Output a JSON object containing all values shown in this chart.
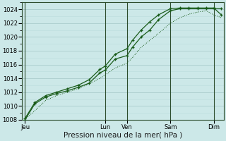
{
  "background_color": "#cce8e8",
  "plot_bg_color": "#cce8e8",
  "grid_major_color": "#aacccc",
  "grid_minor_color": "#bbdddd",
  "line_color": "#1a5c1a",
  "xlabel": "Pression niveau de la mer( hPa )",
  "ylim": [
    1008,
    1025
  ],
  "xlim": [
    0,
    9.3
  ],
  "yticks": [
    1008,
    1010,
    1012,
    1014,
    1016,
    1018,
    1020,
    1022,
    1024
  ],
  "day_labels": [
    "Jeu",
    "Lun",
    "Ven",
    "Sam",
    "Dim"
  ],
  "day_positions": [
    0.15,
    3.85,
    4.85,
    6.85,
    8.85
  ],
  "vline_positions": [
    0.15,
    3.85,
    4.85,
    6.85,
    8.85
  ],
  "line1_x": [
    0.15,
    0.6,
    1.1,
    1.6,
    2.1,
    2.6,
    3.1,
    3.6,
    3.85,
    4.3,
    4.85,
    5.1,
    5.5,
    5.9,
    6.3,
    6.85,
    7.3,
    7.7,
    8.1,
    8.5,
    8.85,
    9.2
  ],
  "line1_y": [
    1008.0,
    1010.3,
    1011.3,
    1011.8,
    1012.2,
    1012.7,
    1013.3,
    1014.8,
    1015.2,
    1016.8,
    1017.3,
    1018.5,
    1020.0,
    1021.0,
    1022.5,
    1023.8,
    1024.1,
    1024.1,
    1024.1,
    1024.1,
    1024.1,
    1024.1
  ],
  "line2_x": [
    0.15,
    0.6,
    1.1,
    1.6,
    2.1,
    2.6,
    3.1,
    3.6,
    3.85,
    4.3,
    4.85,
    5.1,
    5.5,
    5.9,
    6.3,
    6.85,
    7.3,
    7.7,
    8.1,
    8.5,
    8.85,
    9.2
  ],
  "line2_y": [
    1008.2,
    1010.5,
    1011.5,
    1012.0,
    1012.5,
    1013.0,
    1013.8,
    1015.3,
    1015.8,
    1017.5,
    1018.3,
    1019.5,
    1021.0,
    1022.2,
    1023.2,
    1024.1,
    1024.2,
    1024.2,
    1024.2,
    1024.2,
    1024.2,
    1023.2
  ],
  "line3_x": [
    0.15,
    0.6,
    1.1,
    1.6,
    2.1,
    2.6,
    3.1,
    3.6,
    3.85,
    4.3,
    4.85,
    5.1,
    5.5,
    5.9,
    6.3,
    6.85,
    7.3,
    7.7,
    8.1,
    8.5,
    8.85,
    9.2
  ],
  "line3_y": [
    1008.1,
    1009.3,
    1010.8,
    1011.5,
    1012.0,
    1012.5,
    1013.2,
    1014.0,
    1014.5,
    1015.5,
    1016.2,
    1017.0,
    1018.5,
    1019.5,
    1020.5,
    1022.0,
    1022.8,
    1023.3,
    1023.6,
    1023.8,
    1023.2,
    1022.8
  ],
  "tick_fontsize": 6,
  "label_fontsize": 7.5
}
